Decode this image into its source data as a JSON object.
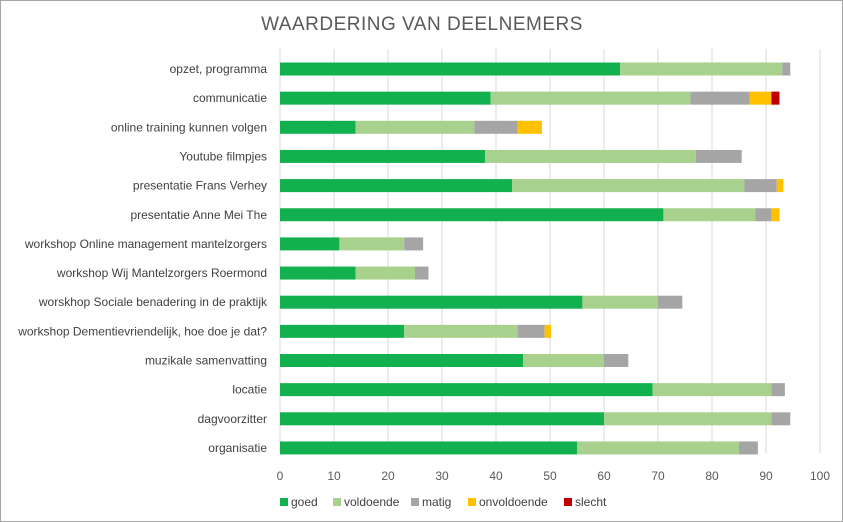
{
  "chart_data": {
    "type": "bar",
    "orientation": "horizontal",
    "stacked": true,
    "title": "WAARDERING  VAN DEELNEMERS",
    "categories": [
      "opzet, programma",
      "communicatie",
      "online training kunnen volgen",
      "Youtube filmpjes",
      "presentatie Frans Verhey",
      "presentatie Anne Mei The",
      "workshop Online management mantelzorgers",
      "workshop Wij Mantelzorgers Roermond",
      "worskhop Sociale benadering in de praktijk",
      "workshop Dementievriendelijk, hoe doe je dat?",
      "muzikale samenvatting",
      "locatie",
      "dagvoorzitter",
      "organisatie"
    ],
    "series": [
      {
        "name": "goed",
        "color": "#12b04e",
        "values": [
          63,
          39,
          14,
          38,
          43,
          71,
          11,
          14,
          56,
          23,
          45,
          69,
          60,
          55
        ]
      },
      {
        "name": "voldoende",
        "color": "#a9d18e",
        "values": [
          30,
          37,
          22,
          39,
          43,
          17,
          12,
          11,
          14,
          21,
          15,
          22,
          31,
          30
        ]
      },
      {
        "name": "matig",
        "color": "#a5a5a5",
        "values": [
          1.5,
          11,
          8,
          8.5,
          6,
          3,
          3.5,
          2.5,
          4.5,
          5,
          4.5,
          2.5,
          3.5,
          3.5
        ]
      },
      {
        "name": "onvoldoende",
        "color": "#ffc000",
        "values": [
          0,
          4,
          4.5,
          0,
          1.2,
          1.5,
          0,
          0,
          0,
          1.2,
          0,
          0,
          0,
          0
        ]
      },
      {
        "name": "slecht",
        "color": "#c00000",
        "values": [
          0,
          1.5,
          0,
          0,
          0,
          0,
          0,
          0,
          0,
          0,
          0,
          0,
          0,
          0
        ]
      }
    ],
    "xlim": [
      0,
      100
    ],
    "xticks": [
      0,
      10,
      20,
      30,
      40,
      50,
      60,
      70,
      80,
      90,
      100
    ],
    "grid": true,
    "legend_position": "bottom"
  }
}
